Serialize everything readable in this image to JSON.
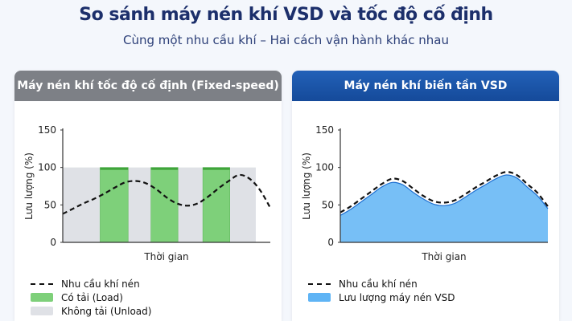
{
  "title": "So sánh máy nén khí VSD và tốc độ cố định",
  "subtitle": "Cùng một nhu cầu khí – Hai cách vận hành khác nhau",
  "colors": {
    "load": "#7ed07a",
    "unload": "#dfe1e6",
    "demand": "#111111",
    "vsd_fill": "#5fb4f5",
    "vsd_stroke": "#1d6fd1"
  },
  "panels": {
    "fixed": {
      "header": "Máy nén khí tốc độ cố định (Fixed-speed)"
    },
    "vsd": {
      "header": "Máy nén khí biến tần VSD"
    }
  },
  "chart_data": [
    {
      "type": "bar",
      "title": "Máy nén khí tốc độ cố định (Fixed-speed)",
      "xlabel": "Thời gian",
      "ylabel": "Lưu lượng (%)",
      "ylim": [
        0,
        150
      ],
      "yticks": [
        0,
        50,
        100,
        150
      ],
      "x_range": [
        0,
        100
      ],
      "states": [
        {
          "name": "Có tải (Load)",
          "segments": [
            [
              18,
              31.5
            ],
            [
              42.5,
              55.5
            ],
            [
              67.5,
              80.5
            ]
          ],
          "value": 100
        },
        {
          "name": "Không tải (Unload)",
          "segments": [
            [
              0,
              18
            ],
            [
              31.5,
              42.5
            ],
            [
              55.5,
              67.5
            ],
            [
              80.5,
              93
            ]
          ],
          "value": 100
        }
      ],
      "series": [
        {
          "name": "Nhu cầu khí nén",
          "style": "dashed",
          "x": [
            0,
            5,
            10,
            15,
            20,
            25,
            30,
            35,
            40,
            45,
            50,
            55,
            60,
            65,
            70,
            75,
            80,
            85,
            90,
            95,
            100
          ],
          "values": [
            38,
            45,
            52,
            58,
            65,
            73,
            80,
            82,
            79,
            71,
            60,
            52,
            49,
            52,
            61,
            72,
            82,
            90,
            85,
            70,
            46
          ]
        }
      ],
      "legend": [
        "Nhu cầu khí nén",
        "Có tải (Load)",
        "Không tải (Unload)"
      ]
    },
    {
      "type": "area",
      "title": "Máy nén khí biến tần VSD",
      "xlabel": "Thời gian",
      "ylabel": "Lưu lượng (%)",
      "ylim": [
        0,
        150
      ],
      "yticks": [
        0,
        50,
        100,
        150
      ],
      "x_range": [
        0,
        100
      ],
      "series": [
        {
          "name": "Nhu cầu khí nén",
          "style": "dashed",
          "x": [
            0,
            5,
            10,
            15,
            20,
            25,
            30,
            35,
            40,
            45,
            50,
            55,
            60,
            65,
            70,
            75,
            80,
            85,
            90,
            95,
            100
          ],
          "values": [
            40,
            48,
            58,
            68,
            78,
            85,
            82,
            72,
            62,
            55,
            53,
            56,
            64,
            73,
            81,
            89,
            94,
            90,
            78,
            66,
            48
          ]
        },
        {
          "name": "Lưu lượng máy nén VSD",
          "style": "area",
          "x": [
            0,
            5,
            10,
            15,
            20,
            25,
            30,
            35,
            40,
            45,
            50,
            55,
            60,
            65,
            70,
            75,
            80,
            85,
            90,
            95,
            100
          ],
          "values": [
            36,
            44,
            54,
            64,
            74,
            80,
            77,
            67,
            58,
            51,
            49,
            52,
            60,
            69,
            77,
            85,
            90,
            86,
            74,
            62,
            45
          ]
        }
      ],
      "legend": [
        "Nhu cầu khí nén",
        "Lưu lượng máy nén VSD"
      ]
    }
  ]
}
